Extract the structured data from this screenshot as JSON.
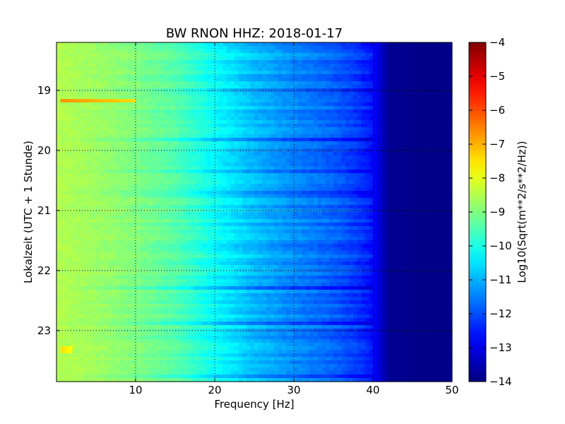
{
  "chart_data": {
    "type": "heatmap",
    "title": "BW RNON HHZ: 2018-01-17",
    "xlabel": "Frequency [Hz]",
    "ylabel": "Lokalzeit (UTC + 1 Stunde)",
    "xlim": [
      0,
      50
    ],
    "ylim": [
      18.2,
      23.85
    ],
    "y_inverted": true,
    "x_ticks": [
      10,
      20,
      30,
      40,
      50
    ],
    "y_ticks": [
      19,
      20,
      21,
      22,
      23
    ],
    "grid": true,
    "colormap": "jet",
    "colorbar": {
      "label": "Log10(Sqrt(m**2/s**2/Hz))",
      "range": [
        -14,
        -4
      ],
      "ticks": [
        -4,
        -5,
        -6,
        -7,
        -8,
        -9,
        -10,
        -11,
        -12,
        -13,
        -14
      ]
    },
    "profile": {
      "frequency_hz": [
        0,
        5,
        10,
        15,
        20,
        25,
        30,
        35,
        38,
        40,
        41,
        42,
        45,
        50
      ],
      "psd_log10": [
        -8.5,
        -8.7,
        -9.0,
        -9.4,
        -10.2,
        -10.9,
        -11.4,
        -11.8,
        -12.2,
        -12.6,
        -13.3,
        -13.8,
        -13.9,
        -13.9
      ]
    },
    "features": [
      {
        "label": "bright narrow band",
        "time": 19.17,
        "freq_range": [
          0.5,
          10
        ],
        "psd_log10": -6.7
      },
      {
        "label": "small bright spot",
        "time": 23.32,
        "freq_range": [
          0.5,
          2
        ],
        "psd_log10": -7.4
      }
    ]
  }
}
